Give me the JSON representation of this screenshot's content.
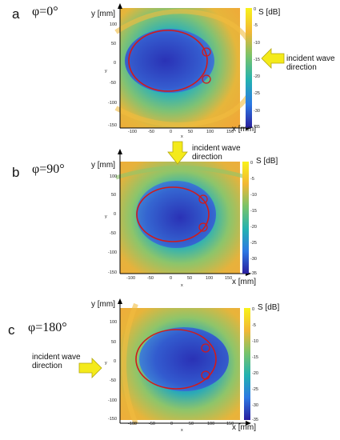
{
  "colors": {
    "ellipse": "#d11a1a",
    "arrow_fill": "#f4ea1a",
    "arrow_stroke": "#b3a810",
    "field_high": "#f3b135",
    "field_mid": "#27b8b0",
    "field_low": "#2b2fb8"
  },
  "icons": [
    "arrow-left-icon",
    "arrow-down-icon",
    "arrow-right-icon"
  ],
  "panels": [
    {
      "letter": "a",
      "angle": "φ=0°",
      "incident_text": [
        "incident wave",
        "direction"
      ],
      "arrow": "left",
      "ylabel": "y [mm]",
      "xlabel": "x [mm]",
      "yticks": [
        "100",
        "50",
        "0",
        "-50",
        "-100",
        "-150"
      ],
      "xticks": [
        "-100",
        "-50",
        "0",
        "50",
        "100",
        "150"
      ],
      "cb_label": "S [dB]",
      "cb_ticks": [
        "0",
        "-5",
        "-10",
        "-15",
        "-20",
        "-25",
        "-30",
        "-35"
      ],
      "small_x": "x",
      "small_y": "y"
    },
    {
      "letter": "b",
      "angle": "φ=90°",
      "incident_text": [
        "incident wave",
        "direction"
      ],
      "arrow": "down",
      "ylabel": "y [mm]",
      "xlabel": "x [mm]",
      "yticks": [
        "100",
        "50",
        "0",
        "-50",
        "-100",
        "-150"
      ],
      "xticks": [
        "-100",
        "-50",
        "0",
        "50",
        "100",
        "150"
      ],
      "cb_label": "S [dB]",
      "cb_ticks": [
        "0",
        "-5",
        "-10",
        "-15",
        "-20",
        "-25",
        "-30",
        "-35"
      ],
      "small_x": "x",
      "small_y": "y"
    },
    {
      "letter": "c",
      "angle": "φ=180°",
      "incident_text": [
        "incident wave",
        "direction"
      ],
      "arrow": "right",
      "ylabel": "y [mm]",
      "xlabel": "x [mm]",
      "yticks": [
        "100",
        "50",
        "0",
        "-50",
        "-100",
        "-150"
      ],
      "xticks": [
        "-100",
        "-50",
        "0",
        "50",
        "100",
        "150"
      ],
      "cb_label": "S [dB]",
      "cb_ticks": [
        "0",
        "-5",
        "-10",
        "-15",
        "-20",
        "-25",
        "-30",
        "-35"
      ],
      "small_x": "x",
      "small_y": "y"
    }
  ]
}
